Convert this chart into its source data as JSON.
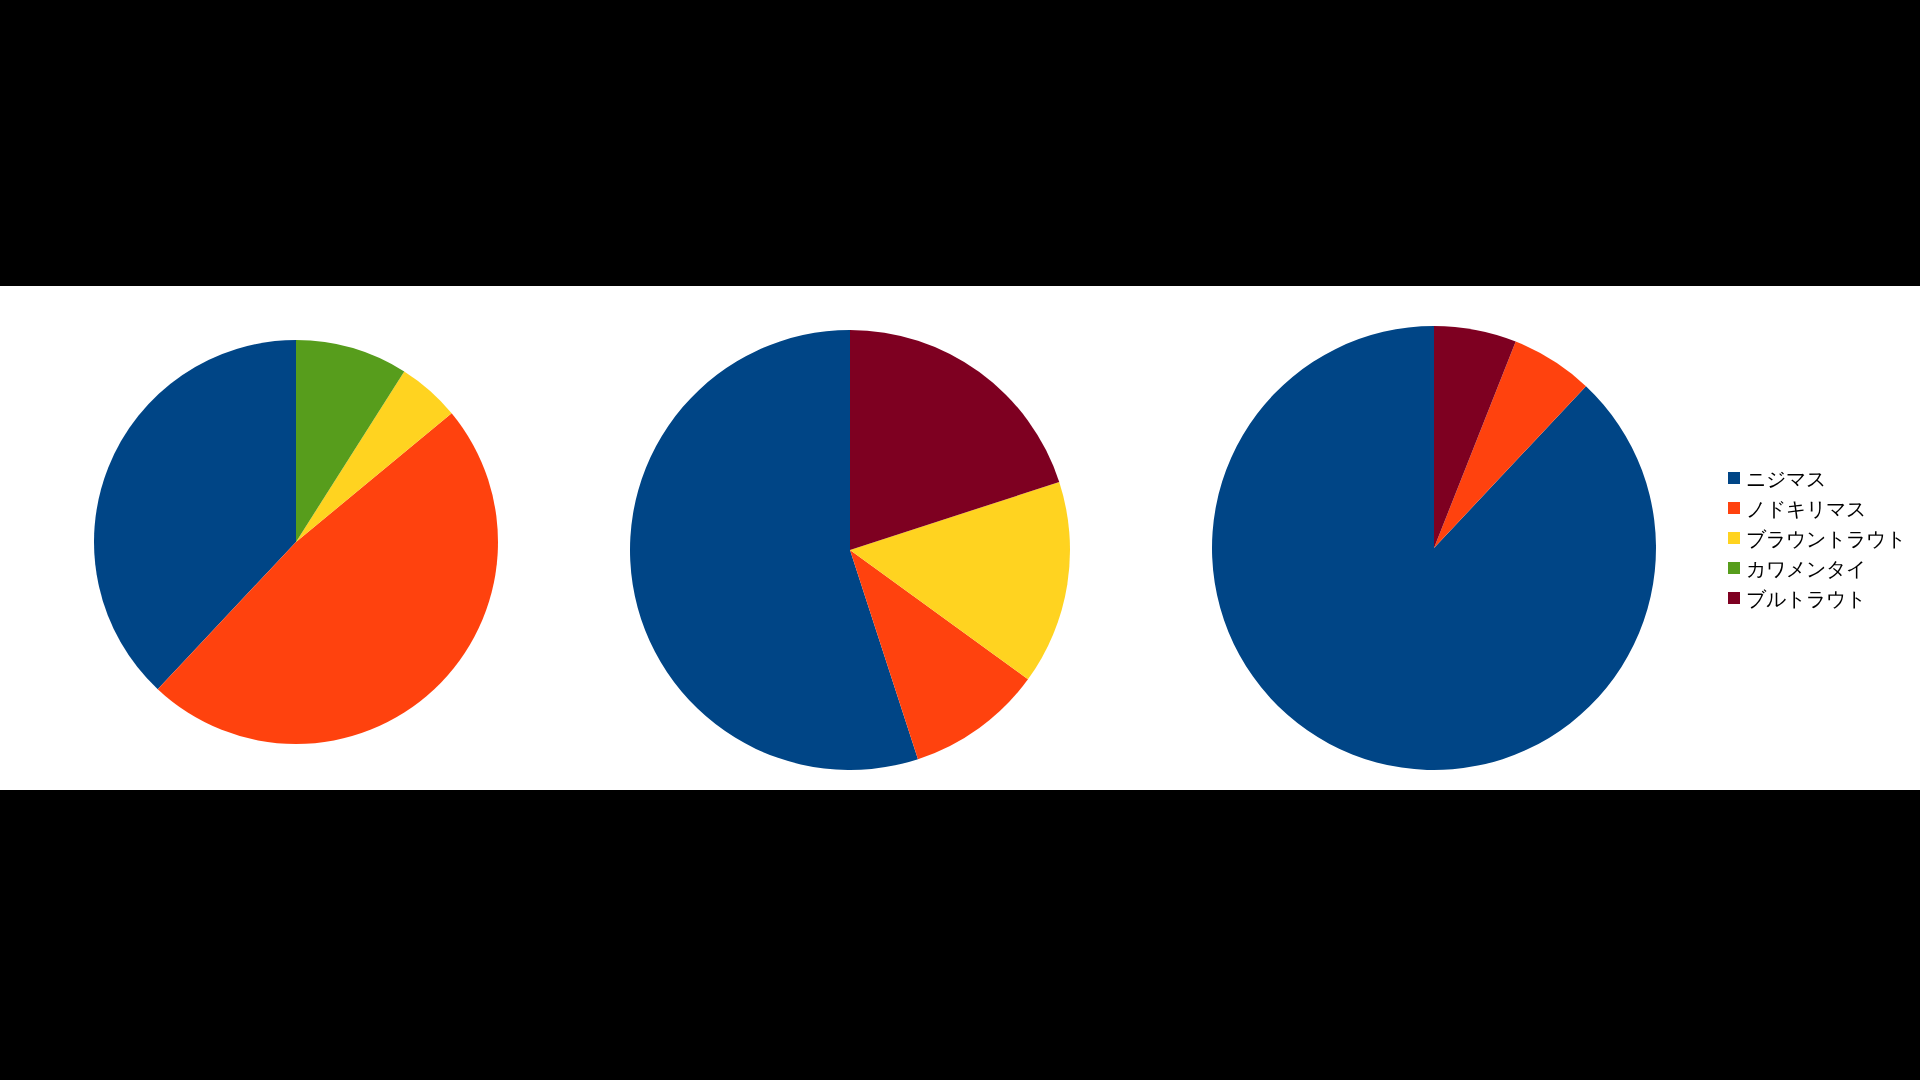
{
  "chart_data": [
    {
      "type": "pie",
      "values": [
        38,
        48,
        5,
        9
      ],
      "colors": [
        "#004586",
        "#ff420e",
        "#ffd320",
        "#579d1c"
      ]
    },
    {
      "type": "pie",
      "values": [
        55,
        10,
        15,
        20
      ],
      "colors": [
        "#004586",
        "#ff420e",
        "#ffd320",
        "#7e0021"
      ]
    },
    {
      "type": "pie",
      "categories": [
        "ニジマス",
        "ノドキリマス",
        "ブラウントラウト",
        "カワメンタイ",
        "ブルトラウト"
      ],
      "values": [
        88,
        6,
        0,
        0,
        6
      ],
      "colors": [
        "#004586",
        "#ff420e",
        "#ffd320",
        "#579d1c",
        "#7e0021"
      ],
      "legend": "right"
    }
  ]
}
